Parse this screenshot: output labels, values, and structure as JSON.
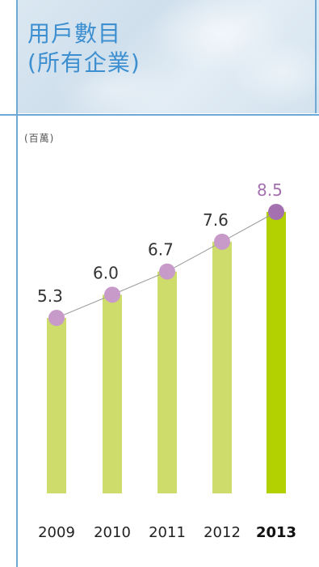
{
  "header": {
    "title": "用戶數目\n(所有企業)"
  },
  "unit_label": "(百萬)",
  "colors": {
    "bar": "#cddc6b",
    "bar_highlight": "#b3d100",
    "marker": "#c89ac9",
    "marker_highlight": "#a470b0",
    "line": "#999999",
    "frame": "#6ea9d6",
    "title": "#3d8fd0"
  },
  "chart_data": {
    "type": "bar",
    "categories": [
      "2009",
      "2010",
      "2011",
      "2012",
      "2013"
    ],
    "values": [
      5.3,
      6.0,
      6.7,
      7.6,
      8.5
    ],
    "value_labels": [
      "5.3",
      "6.0",
      "6.7",
      "7.6",
      "8.5"
    ],
    "highlight_index": 4,
    "ylabel": "(百萬)",
    "ylim": [
      0,
      8.5
    ],
    "grid": false,
    "legend": "none",
    "overlay_line": true
  }
}
